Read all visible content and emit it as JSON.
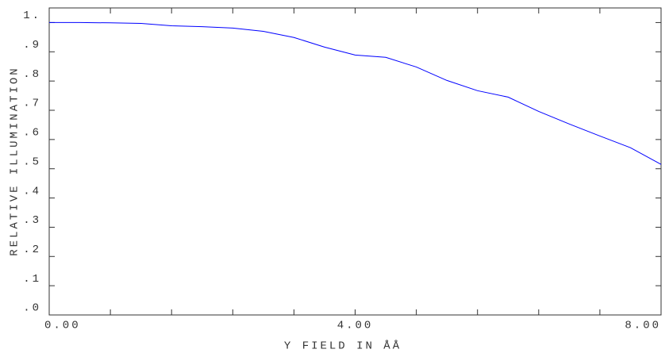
{
  "chart_data": {
    "type": "line",
    "xlabel": "Y FIELD IN  ÅÅ",
    "ylabel": "RELATIVE ILLUMINATION",
    "x": [
      0,
      0.4,
      0.8,
      1.2,
      1.6,
      2.0,
      2.4,
      2.8,
      3.2,
      3.6,
      4.0,
      4.4,
      4.8,
      5.2,
      5.6,
      6.0,
      6.4,
      6.8,
      7.2,
      7.6,
      8.0
    ],
    "series": [
      {
        "color": "#0000ff",
        "values": [
          1.0,
          1.0,
          0.999,
          0.997,
          0.989,
          0.986,
          0.981,
          0.97,
          0.949,
          0.916,
          0.889,
          0.881,
          0.848,
          0.802,
          0.767,
          0.745,
          0.696,
          0.653,
          0.612,
          0.572,
          0.515
        ]
      }
    ],
    "xlim": [
      0,
      8
    ],
    "ylim": [
      0,
      1.05
    ],
    "xticks": [
      {
        "value": 0,
        "label": "0.00"
      },
      {
        "value": 4,
        "label": "4.00"
      },
      {
        "value": 8,
        "label": "8.00"
      }
    ],
    "xminorticks": [
      0.8,
      1.6,
      2.4,
      3.2,
      4.8,
      5.6,
      6.4,
      7.2
    ],
    "yticks": [
      {
        "value": 0,
        "label": ".0"
      },
      {
        "value": 0.1,
        "label": ".1"
      },
      {
        "value": 0.2,
        "label": ".2"
      },
      {
        "value": 0.3,
        "label": ".3"
      },
      {
        "value": 0.4,
        "label": ".4"
      },
      {
        "value": 0.5,
        "label": ".5"
      },
      {
        "value": 0.6,
        "label": ".6"
      },
      {
        "value": 0.7,
        "label": ".7"
      },
      {
        "value": 0.8,
        "label": ".8"
      },
      {
        "value": 0.9,
        "label": ".9"
      },
      {
        "value": 1,
        "label": "1."
      }
    ],
    "grid": false
  }
}
